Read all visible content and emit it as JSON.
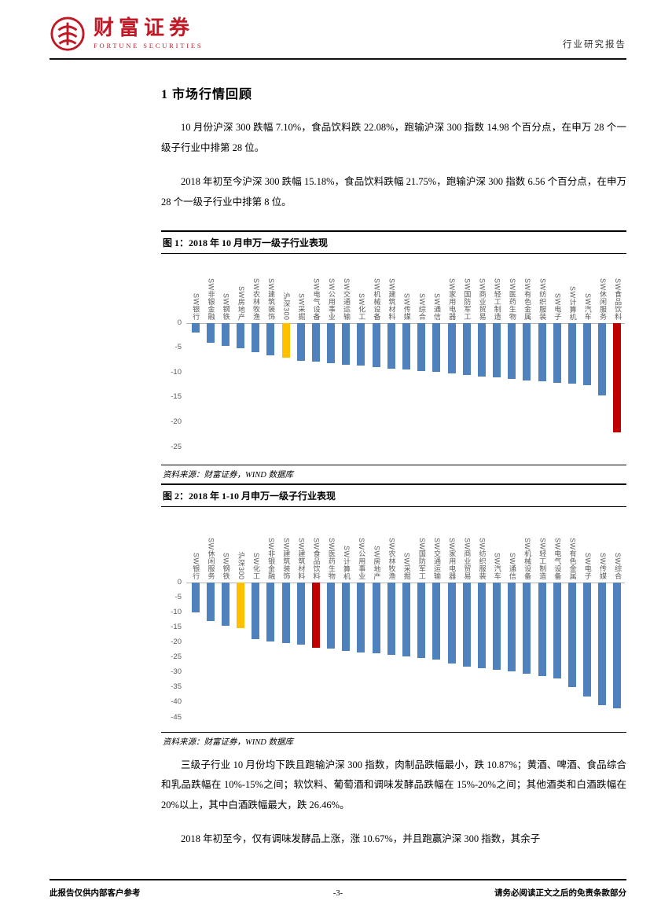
{
  "page": {
    "brand": {
      "name": "财富证券",
      "subtitle": "FORTUNE SECURITIES"
    },
    "header": {
      "report_type": "行业研究报告"
    },
    "section": {
      "title": "1 市场行情回顾"
    },
    "paragraphs": {
      "p1": "10 月份沪深 300 跌幅 7.10%，食品饮料跌 22.08%，跑输沪深 300 指数 14.98 个百分点，在申万 28 个一级子行业中排第 28 位。",
      "p2": "2018 年初至今沪深 300 跌幅 15.18%，食品饮料跌幅 21.75%，跑输沪深 300 指数 6.56 个百分点，在申万 28 个一级子行业中排第 8 位。",
      "p3": "三级子行业 10 月份均下跌且跑输沪深 300 指数，肉制品跌幅最小，跌 10.87%；黄酒、啤酒、食品综合和乳品跌幅在 10%-15%之间；软饮料、葡萄酒和调味发酵品跌幅在 15%-20%之间；其他酒类和白酒跌幅在 20%以上，其中白酒跌幅最大，跌 26.46%。",
      "p4": "2018 年初至今，仅有调味发酵品上涨，涨 10.67%，并且跑赢沪深 300 指数，其余子"
    },
    "figures": {
      "fig1": {
        "title": "图 1：2018 年 10 月申万一级子行业表现",
        "source": "资料来源：财富证券，WIND 数据库"
      },
      "fig2": {
        "title": "图 2：2018 年 1-10 月申万一级子行业表现",
        "source": "资料来源：财富证券，WIND 数据库"
      }
    },
    "footer": {
      "left": "此报告仅供内部客户参考",
      "center": "-3-",
      "right": "请务必阅读正文之后的免责条款部分"
    }
  },
  "chart_data": [
    {
      "type": "bar",
      "title": "图 1：2018 年 10 月申万一级子行业表现",
      "categories": [
        "SW银行",
        "SW非银金融",
        "SW钢铁",
        "SW房地产",
        "SW农林牧渔",
        "SW建筑装饰",
        "沪深300",
        "SW采掘",
        "SW电气设备",
        "SW公用事业",
        "SW交通运输",
        "SW化工",
        "SW机械设备",
        "SW建筑材料",
        "SW传媒",
        "SW综合",
        "SW通信",
        "SW家用电器",
        "SW国防军工",
        "SW商业贸易",
        "SW轻工制造",
        "SW医药生物",
        "SW有色金属",
        "SW纺织服装",
        "SW电子",
        "SW计算机",
        "SW汽车",
        "SW休闲服务",
        "SW食品饮料"
      ],
      "values": [
        -2.0,
        -4.0,
        -4.6,
        -5.2,
        -6.0,
        -6.6,
        -7.1,
        -7.6,
        -7.9,
        -8.1,
        -8.4,
        -8.7,
        -8.9,
        -9.2,
        -9.4,
        -9.7,
        -9.9,
        -10.2,
        -10.5,
        -10.8,
        -11.0,
        -11.3,
        -11.6,
        -11.8,
        -12.1,
        -12.3,
        -12.6,
        -14.6,
        -22.08
      ],
      "ylim": [
        -25,
        0
      ],
      "yticks": [
        0,
        -5,
        -10,
        -15,
        -20,
        -25
      ],
      "grid": false,
      "legend": false,
      "bar_color": "#4F81BD",
      "colors": {
        "沪深300": "#FFC000",
        "SW食品饮料": "#C00000"
      }
    },
    {
      "type": "bar",
      "title": "图 2：2018 年 1-10 月申万一级子行业表现",
      "categories": [
        "SW银行",
        "SW休闲服务",
        "SW钢铁",
        "沪深300",
        "SW化工",
        "SW非银金融",
        "SW建筑装饰",
        "SW建筑材料",
        "SW食品饮料",
        "SW医药生物",
        "SW计算机",
        "SW公用事业",
        "SW房地产",
        "SW农林牧渔",
        "SW采掘",
        "SW国防军工",
        "SW交通运输",
        "SW家用电器",
        "SW商业贸易",
        "SW纺织服装",
        "SW汽车",
        "SW通信",
        "SW机械设备",
        "SW轻工制造",
        "SW电气设备",
        "SW有色金属",
        "SW电子",
        "SW传媒",
        "SW综合"
      ],
      "values": [
        -10.0,
        -13.0,
        -14.6,
        -15.18,
        -19.0,
        -19.8,
        -20.3,
        -20.9,
        -21.75,
        -22.2,
        -22.8,
        -23.3,
        -23.8,
        -24.3,
        -24.8,
        -25.3,
        -25.8,
        -27.0,
        -28.0,
        -28.6,
        -29.2,
        -29.8,
        -30.5,
        -31.2,
        -32.0,
        -35.0,
        -38.0,
        -41.0,
        -42.0
      ],
      "ylim": [
        -45,
        0
      ],
      "yticks": [
        0,
        -5,
        -10,
        -15,
        -20,
        -25,
        -30,
        -35,
        -40,
        -45
      ],
      "grid": false,
      "legend": false,
      "bar_color": "#4F81BD",
      "colors": {
        "沪深300": "#FFC000",
        "SW食品饮料": "#C00000"
      }
    }
  ]
}
